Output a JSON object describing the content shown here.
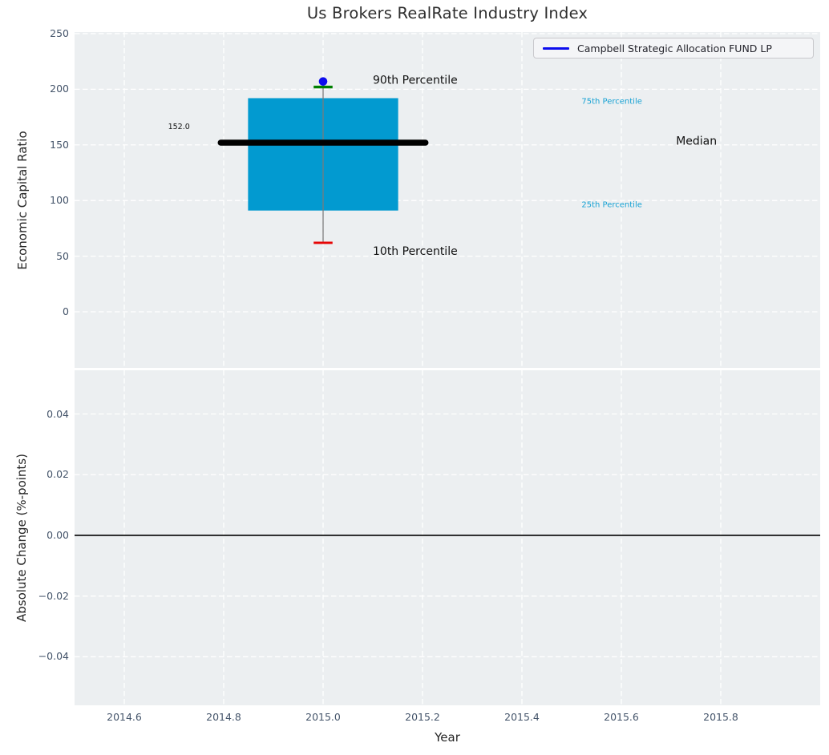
{
  "legend": {
    "label": "Campbell Strategic Allocation FUND LP",
    "line_color": "#0d0dee"
  },
  "style": {
    "axes_background": "#eceff1",
    "grid_color": "#ffffff",
    "tick_label_color": "#44546a",
    "axis_label_color": "#262626",
    "title_color": "#2e2e2e"
  },
  "chart_data": [
    {
      "type": "boxplot",
      "title": "Us Brokers RealRate Industry Index",
      "ylabel": "Economic Capital Ratio",
      "xlim": [
        2014.5,
        2016.0
      ],
      "ylim": [
        -50.4,
        251.4
      ],
      "grid": true,
      "xticks": [
        2014.6,
        2014.8,
        2015.0,
        2015.2,
        2015.4,
        2015.6,
        2015.8
      ],
      "yticks": [
        {
          "v": 0,
          "label": "0"
        },
        {
          "v": 50,
          "label": "50"
        },
        {
          "v": 100,
          "label": "100"
        },
        {
          "v": 150,
          "label": "150"
        },
        {
          "v": 200,
          "label": "200"
        },
        {
          "v": 250,
          "label": "250"
        }
      ],
      "box": {
        "x": 2015.0,
        "p10": 62,
        "p25": 91,
        "median": 152,
        "p75": 192,
        "p90": 202,
        "fund_value": 207,
        "median_label": "152.0"
      },
      "colors": {
        "box_fill": "#029ad0",
        "median_line": "#000000",
        "whisker": "#7a7a7a",
        "cap_90": "#008000",
        "cap_10": "#e60505",
        "fund_marker": "#0d0dee",
        "annotation_dark": "#111111",
        "annotation_cyan": "#18a2d4"
      },
      "annotations": [
        {
          "text": "90th Percentile",
          "x": 2015.1,
          "y": 208,
          "size": 14,
          "color": "#111111",
          "ha": "left"
        },
        {
          "text": "10th Percentile",
          "x": 2015.1,
          "y": 54,
          "size": 14,
          "color": "#111111",
          "ha": "left"
        },
        {
          "text": "75th Percentile",
          "x": 2015.52,
          "y": 189,
          "size": 10,
          "color": "#18a2d4",
          "ha": "left"
        },
        {
          "text": "25th Percentile",
          "x": 2015.52,
          "y": 96,
          "size": 10,
          "color": "#18a2d4",
          "ha": "left"
        },
        {
          "text": "Median",
          "x": 2015.71,
          "y": 153,
          "size": 14,
          "color": "#111111",
          "ha": "left"
        },
        {
          "text": "152.0",
          "x": 2014.71,
          "y": 166,
          "size": 9.5,
          "color": "#111111",
          "ha": "center"
        }
      ]
    },
    {
      "type": "line",
      "ylabel": "Absolute Change (%-points)",
      "xlabel": "Year",
      "xlim": [
        2014.5,
        2016.0
      ],
      "ylim": [
        -0.056,
        0.0544
      ],
      "grid": true,
      "zero_line": 0.0,
      "series": [],
      "xticks": [
        {
          "v": 2014.6,
          "label": "2014.6"
        },
        {
          "v": 2014.8,
          "label": "2014.8"
        },
        {
          "v": 2015.0,
          "label": "2015.0"
        },
        {
          "v": 2015.2,
          "label": "2015.2"
        },
        {
          "v": 2015.4,
          "label": "2015.4"
        },
        {
          "v": 2015.6,
          "label": "2015.6"
        },
        {
          "v": 2015.8,
          "label": "2015.8"
        }
      ],
      "yticks": [
        {
          "v": 0.04,
          "label": "0.04"
        },
        {
          "v": 0.02,
          "label": "0.02"
        },
        {
          "v": 0.0,
          "label": "0.00"
        },
        {
          "v": -0.02,
          "label": "−0.02"
        },
        {
          "v": -0.04,
          "label": "−0.04"
        }
      ]
    }
  ]
}
